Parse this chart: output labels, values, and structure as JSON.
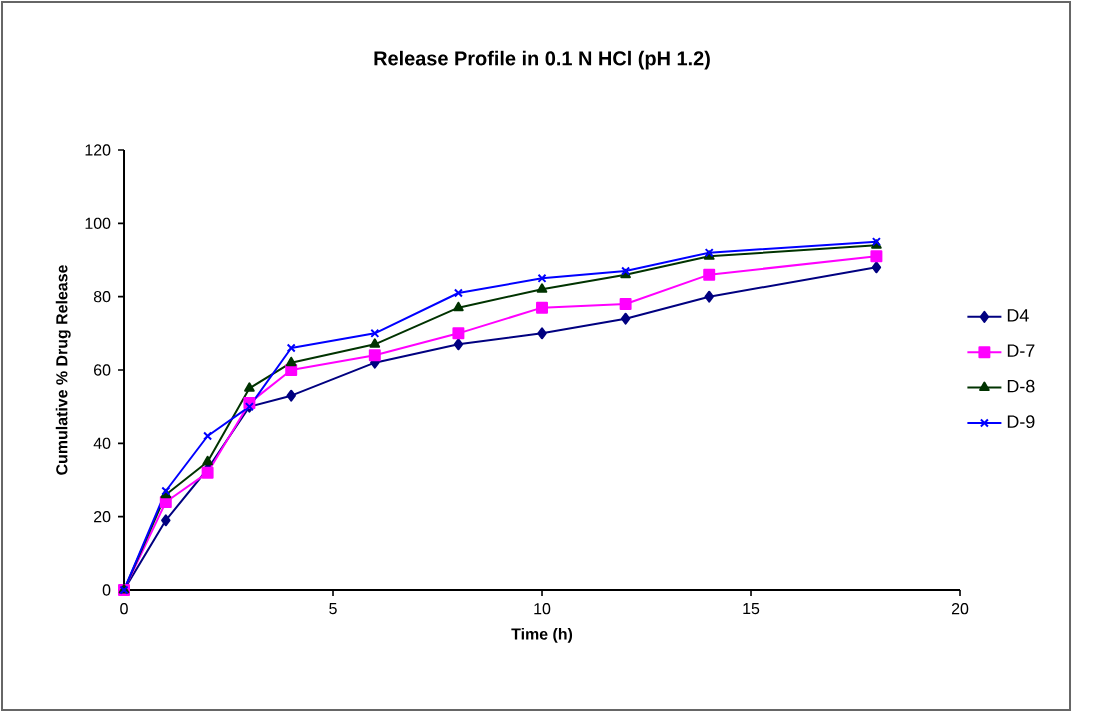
{
  "chart_data": {
    "type": "line",
    "title": "Release Profile in 0.1 N HCl (pH 1.2)",
    "xlabel": "Time (h)",
    "ylabel": "Cumulative % Drug Release",
    "x": [
      0,
      1,
      2,
      3,
      4,
      6,
      8,
      10,
      12,
      14,
      18
    ],
    "series": [
      {
        "name": "D4",
        "color": "#000080",
        "marker": "diamond",
        "values": [
          0,
          19,
          33,
          50,
          53,
          62,
          67,
          70,
          74,
          80,
          88
        ]
      },
      {
        "name": "D-7",
        "color": "#ff00ff",
        "marker": "square",
        "values": [
          0,
          24,
          32,
          51,
          60,
          64,
          70,
          77,
          78,
          86,
          91
        ]
      },
      {
        "name": "D-8",
        "color": "#003300",
        "marker": "triangle",
        "values": [
          0,
          26,
          35,
          55,
          62,
          67,
          77,
          82,
          86,
          91,
          94
        ]
      },
      {
        "name": "D-9",
        "color": "#0000ff",
        "marker": "cross",
        "values": [
          0,
          27,
          42,
          50,
          66,
          70,
          81,
          85,
          87,
          92,
          95
        ]
      }
    ],
    "xlim": [
      0,
      20
    ],
    "xticks": [
      0,
      5,
      10,
      15,
      20
    ],
    "ylim": [
      0,
      120
    ],
    "yticks": [
      0,
      20,
      40,
      60,
      80,
      100,
      120
    ],
    "grid": false,
    "legend": "right"
  }
}
